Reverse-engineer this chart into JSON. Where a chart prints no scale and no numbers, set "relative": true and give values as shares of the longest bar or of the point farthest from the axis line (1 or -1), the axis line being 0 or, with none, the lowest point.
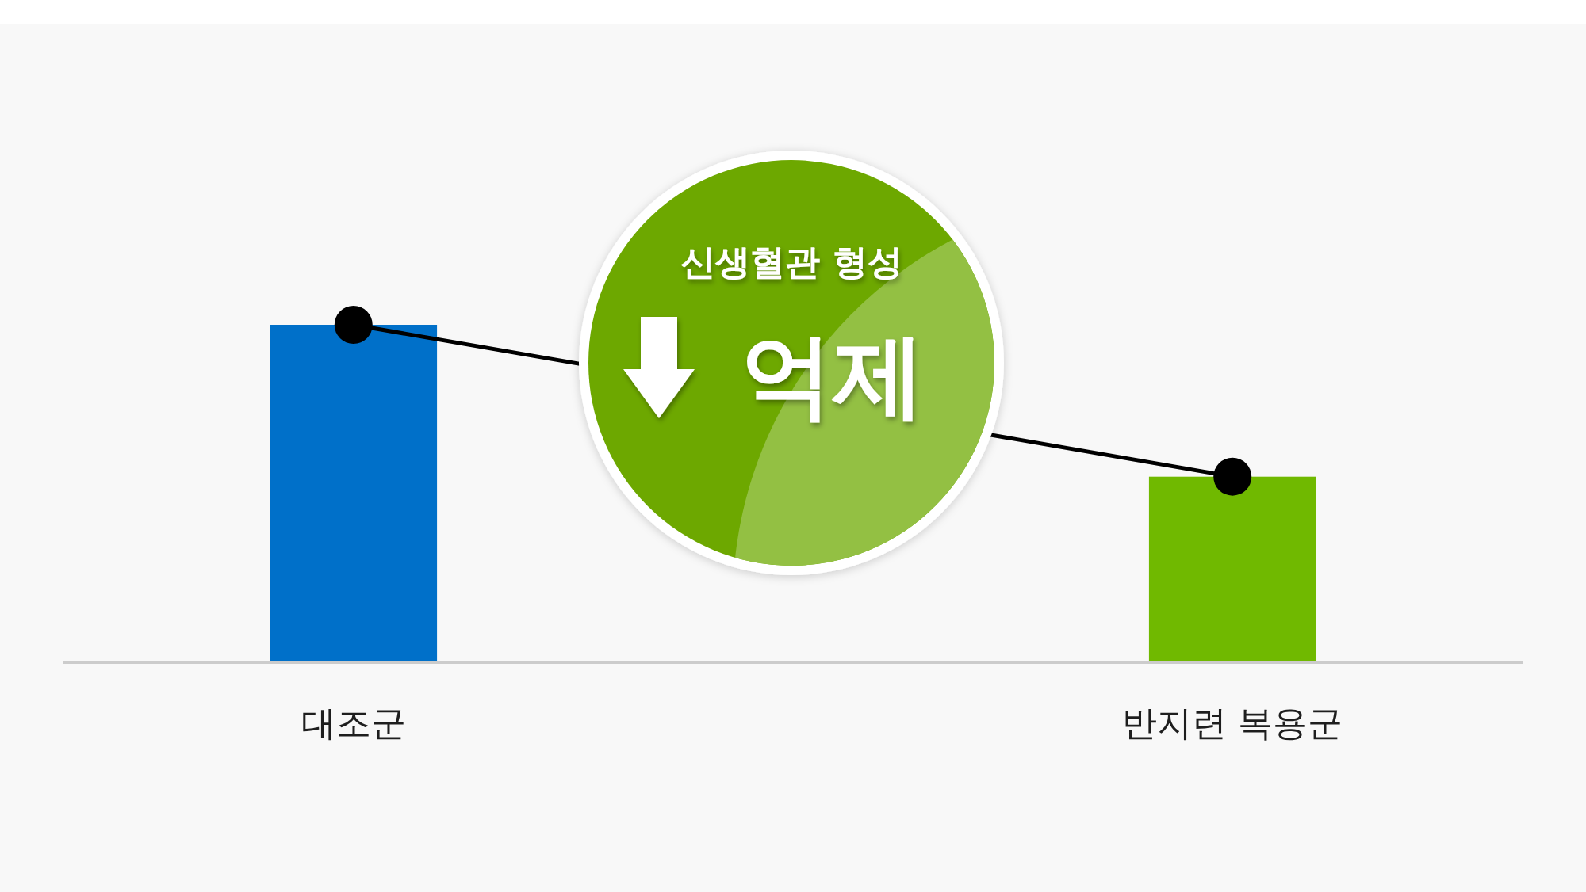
{
  "chart_data": {
    "type": "bar",
    "categories": [
      "대조군",
      "반지련 복용군"
    ],
    "relative": true,
    "marker": "circle",
    "series": [
      {
        "colors": [
          "#0070c9",
          "#70b900"
        ],
        "values": [
          1,
          0.55
        ]
      },
      {
        "type": "line",
        "color": "#000000",
        "values": [
          1,
          0.55
        ]
      }
    ],
    "annotations": [
      "신생혈관 형성",
      "억제"
    ]
  }
}
